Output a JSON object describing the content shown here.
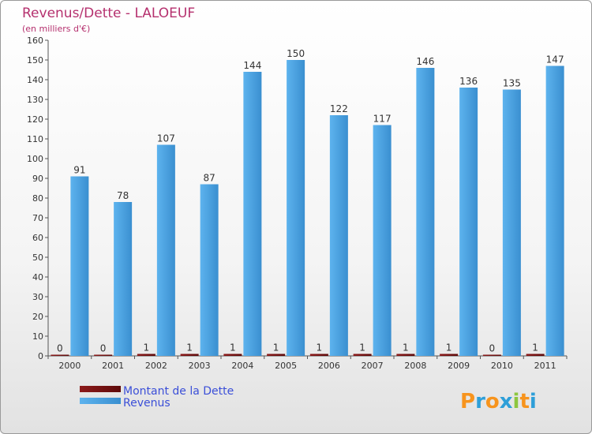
{
  "chart_data": {
    "type": "bar",
    "title": "Revenus/Dette - LALOEUF",
    "subtitle": "(en milliers d'€)",
    "categories": [
      "2000",
      "2001",
      "2002",
      "2003",
      "2004",
      "2005",
      "2006",
      "2007",
      "2008",
      "2009",
      "2010",
      "2011"
    ],
    "series": [
      {
        "name": "Montant de la Dette",
        "color": "#7a0f0f",
        "values": [
          0,
          0,
          1,
          1,
          1,
          1,
          1,
          1,
          1,
          1,
          0,
          1
        ]
      },
      {
        "name": "Revenus",
        "color": "#4da6e8",
        "values": [
          91,
          78,
          107,
          87,
          144,
          150,
          122,
          117,
          146,
          136,
          135,
          147
        ]
      }
    ],
    "ylim": [
      0,
      160
    ],
    "ytick_step": 10,
    "grid": false,
    "legend_position": "bottom-left"
  },
  "logo": {
    "letters": [
      "P",
      "r",
      "o",
      "x",
      "i",
      "t",
      "i"
    ],
    "colors": [
      "#f7941d",
      "#2e9fd8",
      "#f7941d",
      "#2e9fd8",
      "#8dc63f",
      "#f7941d",
      "#2e9fd8"
    ]
  }
}
